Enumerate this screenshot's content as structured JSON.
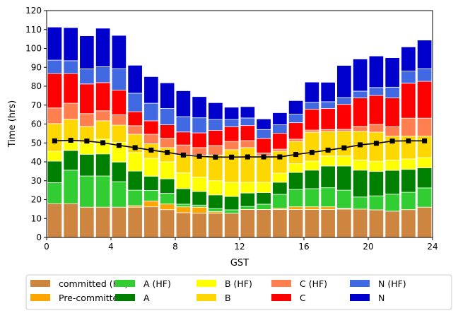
{
  "chart_data": {
    "type": "bar",
    "stacked": true,
    "title": "",
    "xlabel": "GST",
    "ylabel": "Time (hrs)",
    "xlim": [
      0,
      24
    ],
    "ylim": [
      0,
      120
    ],
    "xticks": [
      0,
      4,
      8,
      12,
      16,
      20,
      24
    ],
    "yticks": [
      0,
      10,
      20,
      30,
      40,
      50,
      60,
      70,
      80,
      90,
      100,
      110,
      120
    ],
    "grid": false,
    "legend_placement": "bottom-center",
    "x": [
      0.5,
      1.5,
      2.5,
      3.5,
      4.5,
      5.5,
      6.5,
      7.5,
      8.5,
      9.5,
      10.5,
      11.5,
      12.5,
      13.5,
      14.5,
      15.5,
      16.5,
      17.5,
      18.5,
      19.5,
      20.5,
      21.5,
      22.5,
      23.5
    ],
    "series": [
      {
        "name": "committed (HF)",
        "color": "#CD853F",
        "values": [
          17.9,
          17.9,
          16,
          16,
          16,
          16,
          16.2,
          14.7,
          13.1,
          12.8,
          12.8,
          12.8,
          14.8,
          14.8,
          14.8,
          14.8,
          14.8,
          14.8,
          15,
          15,
          14.6,
          13.9,
          14.7,
          16
        ]
      },
      {
        "name": "Pre-committed",
        "color": "#FFA500",
        "values": [
          0,
          0,
          0,
          0,
          0,
          0.8,
          3.1,
          3,
          3.1,
          3.2,
          0.9,
          0,
          0,
          0,
          0.6,
          1.4,
          1.4,
          1.4,
          0.4,
          0,
          0,
          0,
          0,
          0
        ]
      },
      {
        "name": "A (HF)",
        "color": "#32CD32",
        "values": [
          11.1,
          17.7,
          16.5,
          16.5,
          13.5,
          8.2,
          5.6,
          5.7,
          1.4,
          1.1,
          1.6,
          1.8,
          1.6,
          2.8,
          7.4,
          9.2,
          9.6,
          10.1,
          9.6,
          6.4,
          7.4,
          9,
          9.2,
          10.2
        ]
      },
      {
        "name": "A",
        "color": "#008000",
        "values": [
          11.4,
          10.4,
          11.5,
          11.7,
          10.4,
          10.1,
          7.5,
          7.6,
          8.2,
          7.2,
          7.2,
          7.1,
          7.1,
          6.1,
          6.4,
          9,
          9.8,
          11.5,
          12.8,
          14.2,
          12.9,
          12.6,
          12.1,
          10.6
        ]
      },
      {
        "name": "B (HF)",
        "color": "#FFFF00",
        "values": [
          5.2,
          4.5,
          6,
          7.8,
          10.4,
          9.8,
          9.5,
          9,
          8.5,
          7.6,
          7.5,
          7.5,
          5.7,
          5.5,
          4.8,
          4.6,
          4.8,
          5.3,
          5.4,
          5.4,
          5.4,
          5.4,
          5.5,
          5.4
        ]
      },
      {
        "name": "B",
        "color": "#FFD700",
        "values": [
          14.6,
          12,
          8.7,
          9.7,
          9.1,
          9.7,
          7.7,
          7.5,
          9.3,
          11.6,
          13.6,
          17.2,
          18.3,
          13.9,
          11.6,
          11.8,
          15.3,
          12.9,
          13,
          15.1,
          15.4,
          12.7,
          12.1,
          11.4
        ]
      },
      {
        "name": "C (HF)",
        "color": "#FF7F50",
        "values": [
          8.3,
          8.5,
          6.8,
          5.3,
          5.5,
          4.5,
          5,
          4.9,
          5.3,
          4,
          5,
          4.4,
          3.7,
          1.6,
          1.1,
          1.2,
          1.1,
          1.1,
          1,
          2.6,
          4.1,
          5,
          9.5,
          9.5
        ]
      },
      {
        "name": "C",
        "color": "#FF0000",
        "values": [
          18.2,
          15.7,
          15.7,
          14.9,
          13,
          7.4,
          7.1,
          7.2,
          6.9,
          7.8,
          8,
          7.8,
          8,
          7.7,
          8.4,
          8.7,
          11,
          11.1,
          13.2,
          15.1,
          15.3,
          15.2,
          18.5,
          19.5
        ]
      },
      {
        "name": "N (HF)",
        "color": "#4169E1",
        "values": [
          7.1,
          6.8,
          8,
          8.4,
          11.4,
          9.8,
          9.3,
          8.6,
          8.1,
          8,
          5.8,
          3.8,
          4,
          4.7,
          4.5,
          4.5,
          3.7,
          3.6,
          3.6,
          3.6,
          4.2,
          5.7,
          6.4,
          6.7
        ]
      },
      {
        "name": "N",
        "color": "#0000CD",
        "values": [
          17.5,
          17.5,
          17.5,
          20.4,
          17.6,
          14.8,
          14.1,
          13.6,
          13.7,
          11.2,
          8.9,
          6.5,
          6,
          5.6,
          6.4,
          7.2,
          10.7,
          10.3,
          17,
          17,
          16.7,
          15.6,
          12.8,
          15.1
        ]
      }
    ],
    "line": {
      "color": "#000000",
      "values": [
        51.1,
        51.4,
        51,
        50.1,
        48.7,
        47.5,
        46.2,
        45,
        43.6,
        42.9,
        42.5,
        42.5,
        42.6,
        42.6,
        42.6,
        43.9,
        45,
        46.2,
        47.4,
        49,
        49.8,
        51,
        51.1,
        51.1
      ]
    },
    "legend_order": [
      0,
      2,
      4,
      6,
      8,
      1,
      3,
      5,
      7,
      9
    ]
  }
}
